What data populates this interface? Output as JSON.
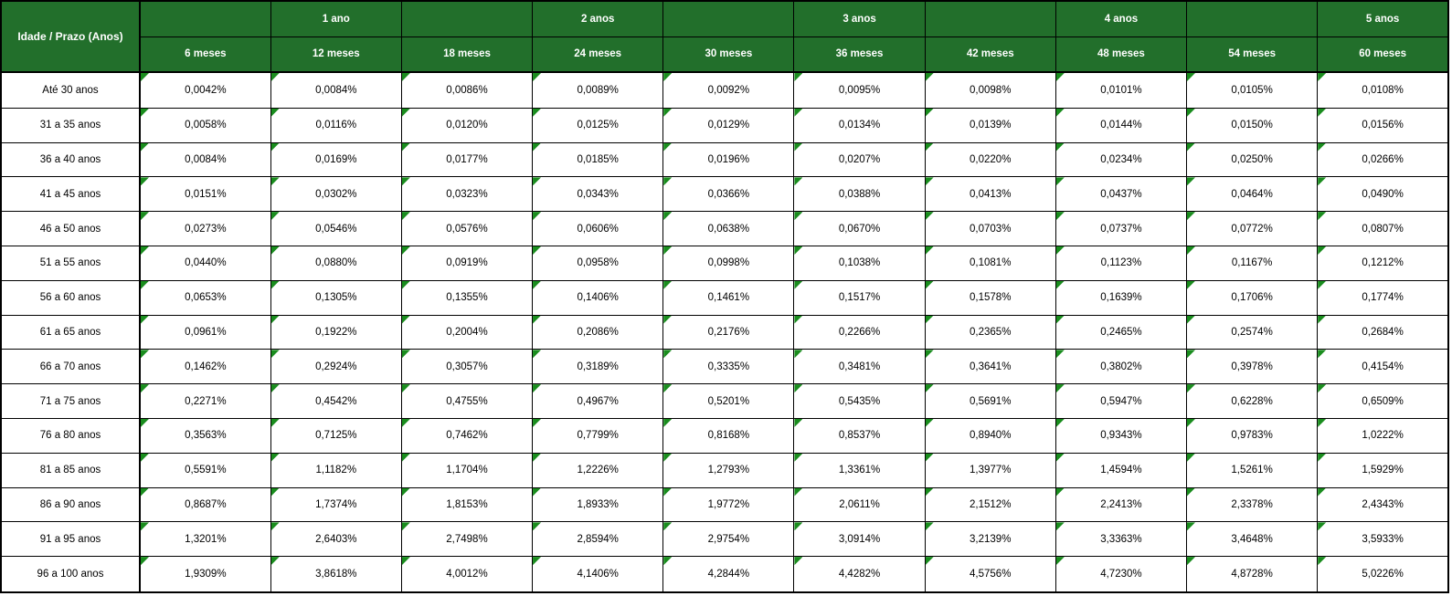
{
  "colors": {
    "header_bg": "#226F2B",
    "header_text": "#FFFFFF",
    "border": "#000000",
    "cell_bg": "#FFFFFF",
    "cell_text": "#000000",
    "flag_triangle": "#1A8D1E"
  },
  "table": {
    "corner_header": "Idade / Prazo (Anos)",
    "year_headers": [
      "",
      "1 ano",
      "",
      "2 anos",
      "",
      "3 anos",
      "",
      "4 anos",
      "",
      "5 anos"
    ],
    "month_headers": [
      "6 meses",
      "12 meses",
      "18 meses",
      "24 meses",
      "30 meses",
      "36 meses",
      "42 meses",
      "48 meses",
      "54 meses",
      "60 meses"
    ],
    "rows": [
      {
        "label": "Até 30 anos",
        "values": [
          "0,0042%",
          "0,0084%",
          "0,0086%",
          "0,0089%",
          "0,0092%",
          "0,0095%",
          "0,0098%",
          "0,0101%",
          "0,0105%",
          "0,0108%"
        ]
      },
      {
        "label": "31 a 35 anos",
        "values": [
          "0,0058%",
          "0,0116%",
          "0,0120%",
          "0,0125%",
          "0,0129%",
          "0,0134%",
          "0,0139%",
          "0,0144%",
          "0,0150%",
          "0,0156%"
        ]
      },
      {
        "label": "36 a 40 anos",
        "values": [
          "0,0084%",
          "0,0169%",
          "0,0177%",
          "0,0185%",
          "0,0196%",
          "0,0207%",
          "0,0220%",
          "0,0234%",
          "0,0250%",
          "0,0266%"
        ]
      },
      {
        "label": "41 a 45 anos",
        "values": [
          "0,0151%",
          "0,0302%",
          "0,0323%",
          "0,0343%",
          "0,0366%",
          "0,0388%",
          "0,0413%",
          "0,0437%",
          "0,0464%",
          "0,0490%"
        ]
      },
      {
        "label": "46 a 50 anos",
        "values": [
          "0,0273%",
          "0,0546%",
          "0,0576%",
          "0,0606%",
          "0,0638%",
          "0,0670%",
          "0,0703%",
          "0,0737%",
          "0,0772%",
          "0,0807%"
        ]
      },
      {
        "label": "51 a 55 anos",
        "values": [
          "0,0440%",
          "0,0880%",
          "0,0919%",
          "0,0958%",
          "0,0998%",
          "0,1038%",
          "0,1081%",
          "0,1123%",
          "0,1167%",
          "0,1212%"
        ]
      },
      {
        "label": "56 a 60 anos",
        "values": [
          "0,0653%",
          "0,1305%",
          "0,1355%",
          "0,1406%",
          "0,1461%",
          "0,1517%",
          "0,1578%",
          "0,1639%",
          "0,1706%",
          "0,1774%"
        ]
      },
      {
        "label": "61 a 65 anos",
        "values": [
          "0,0961%",
          "0,1922%",
          "0,2004%",
          "0,2086%",
          "0,2176%",
          "0,2266%",
          "0,2365%",
          "0,2465%",
          "0,2574%",
          "0,2684%"
        ]
      },
      {
        "label": "66 a 70 anos",
        "values": [
          "0,1462%",
          "0,2924%",
          "0,3057%",
          "0,3189%",
          "0,3335%",
          "0,3481%",
          "0,3641%",
          "0,3802%",
          "0,3978%",
          "0,4154%"
        ]
      },
      {
        "label": "71 a 75 anos",
        "values": [
          "0,2271%",
          "0,4542%",
          "0,4755%",
          "0,4967%",
          "0,5201%",
          "0,5435%",
          "0,5691%",
          "0,5947%",
          "0,6228%",
          "0,6509%"
        ]
      },
      {
        "label": "76 a 80 anos",
        "values": [
          "0,3563%",
          "0,7125%",
          "0,7462%",
          "0,7799%",
          "0,8168%",
          "0,8537%",
          "0,8940%",
          "0,9343%",
          "0,9783%",
          "1,0222%"
        ]
      },
      {
        "label": "81 a 85 anos",
        "values": [
          "0,5591%",
          "1,1182%",
          "1,1704%",
          "1,2226%",
          "1,2793%",
          "1,3361%",
          "1,3977%",
          "1,4594%",
          "1,5261%",
          "1,5929%"
        ]
      },
      {
        "label": "86 a 90 anos",
        "values": [
          "0,8687%",
          "1,7374%",
          "1,8153%",
          "1,8933%",
          "1,9772%",
          "2,0611%",
          "2,1512%",
          "2,2413%",
          "2,3378%",
          "2,4343%"
        ]
      },
      {
        "label": "91 a 95 anos",
        "values": [
          "1,3201%",
          "2,6403%",
          "2,7498%",
          "2,8594%",
          "2,9754%",
          "3,0914%",
          "3,2139%",
          "3,3363%",
          "3,4648%",
          "3,5933%"
        ]
      },
      {
        "label": "96 a 100 anos",
        "values": [
          "1,9309%",
          "3,8618%",
          "4,0012%",
          "4,1406%",
          "4,2844%",
          "4,4282%",
          "4,5756%",
          "4,7230%",
          "4,8728%",
          "5,0226%"
        ]
      }
    ]
  }
}
